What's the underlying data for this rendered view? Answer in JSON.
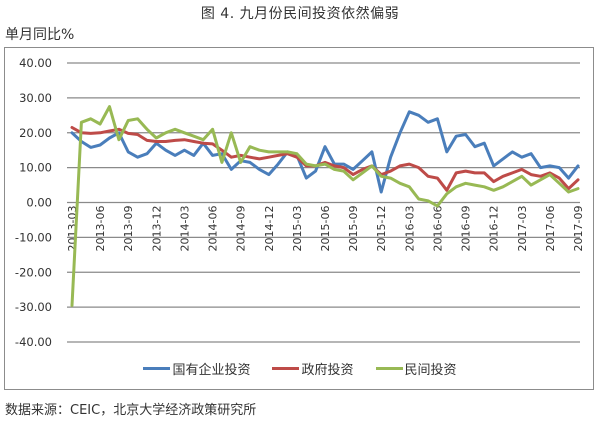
{
  "figure": {
    "title": "图 4. 九月份民间投资依然偏弱",
    "unit_label": "单月同比%",
    "source": "数据来源：CEIC，北京大学经济政策研究所"
  },
  "legend": [
    {
      "label": "国有企业投资",
      "color": "#4a7ebb"
    },
    {
      "label": "政府投资",
      "color": "#be4b48"
    },
    {
      "label": "民间投资",
      "color": "#98b954"
    }
  ],
  "chart_data": {
    "type": "line",
    "title": "图 4. 九月份民间投资依然偏弱",
    "xlabel": "",
    "ylabel": "单月同比%",
    "ylim": [
      -40,
      40
    ],
    "yticks": [
      "40.00",
      "30.00",
      "20.00",
      "10.00",
      "0.00",
      "-10.00",
      "-20.00",
      "-30.00",
      "-40.00"
    ],
    "grid": true,
    "legend_position": "bottom",
    "x_tick_labels": [
      "2013-03",
      "2013-06",
      "2013-09",
      "2013-12",
      "2014-03",
      "2014-06",
      "2014-09",
      "2014-12",
      "2015-03",
      "2015-06",
      "2015-09",
      "2015-12",
      "2016-03",
      "2016-06",
      "2016-09",
      "2016-12",
      "2017-03",
      "2017-06",
      "2017-09"
    ],
    "x": [
      "2013-03",
      "2013-04",
      "2013-05",
      "2013-06",
      "2013-07",
      "2013-08",
      "2013-09",
      "2013-10",
      "2013-11",
      "2013-12",
      "2014-01",
      "2014-02",
      "2014-03",
      "2014-04",
      "2014-05",
      "2014-06",
      "2014-07",
      "2014-08",
      "2014-09",
      "2014-10",
      "2014-11",
      "2014-12",
      "2015-01",
      "2015-02",
      "2015-03",
      "2015-04",
      "2015-05",
      "2015-06",
      "2015-07",
      "2015-08",
      "2015-09",
      "2015-10",
      "2015-11",
      "2015-12",
      "2016-01",
      "2016-02",
      "2016-03",
      "2016-04",
      "2016-05",
      "2016-06",
      "2016-07",
      "2016-08",
      "2016-09",
      "2016-10",
      "2016-11",
      "2016-12",
      "2017-01",
      "2017-02",
      "2017-03",
      "2017-04",
      "2017-05",
      "2017-06",
      "2017-07",
      "2017-08",
      "2017-09"
    ],
    "series": [
      {
        "name": "国有企业投资",
        "color": "#4a7ebb",
        "values": [
          20,
          17.5,
          15.8,
          16.5,
          18.5,
          20,
          14.5,
          13,
          14,
          17,
          15,
          13.5,
          15,
          13.5,
          17,
          13.5,
          14,
          9.5,
          12,
          11.5,
          9.5,
          8,
          11,
          14.5,
          13.5,
          7,
          9,
          16,
          11,
          11,
          9.5,
          12,
          14.5,
          3,
          13,
          20,
          26,
          25,
          23,
          24,
          14.5,
          19,
          19.5,
          16,
          17,
          10.5,
          12.5,
          14.5,
          13,
          14,
          10,
          10.5,
          10,
          7,
          10.5
        ]
      },
      {
        "name": "政府投资",
        "color": "#be4b48",
        "values": [
          21.5,
          20,
          19.8,
          20,
          20.5,
          21,
          19.8,
          19.5,
          17.8,
          17.5,
          17.5,
          17.8,
          18,
          17.5,
          17,
          16.8,
          15,
          13,
          13.5,
          13,
          12.5,
          13,
          13.5,
          14,
          13,
          10.5,
          10.5,
          11.5,
          10.5,
          10,
          8,
          9.5,
          10.5,
          8,
          9,
          10.5,
          11,
          10,
          7.5,
          7,
          3.5,
          8.5,
          9,
          8.5,
          8.5,
          6,
          7.5,
          8.5,
          9.5,
          8,
          7.5,
          8.5,
          7,
          4,
          6.5
        ]
      },
      {
        "name": "民间投资",
        "color": "#98b954",
        "values": [
          -29.5,
          23,
          24,
          22.5,
          27.5,
          18,
          23.5,
          24,
          21,
          18.5,
          20,
          21,
          20,
          19,
          18,
          21,
          11.5,
          20,
          11.5,
          16,
          15,
          14.5,
          14.5,
          14.5,
          14,
          11,
          10.5,
          11,
          9.5,
          9,
          6.5,
          8.5,
          10.5,
          7.5,
          7,
          5.5,
          4.5,
          1,
          0.5,
          -1,
          2.5,
          4.5,
          5.5,
          5,
          4.5,
          3.5,
          4.5,
          6,
          7.5,
          5,
          6.5,
          8,
          5.5,
          3,
          4
        ]
      }
    ]
  }
}
